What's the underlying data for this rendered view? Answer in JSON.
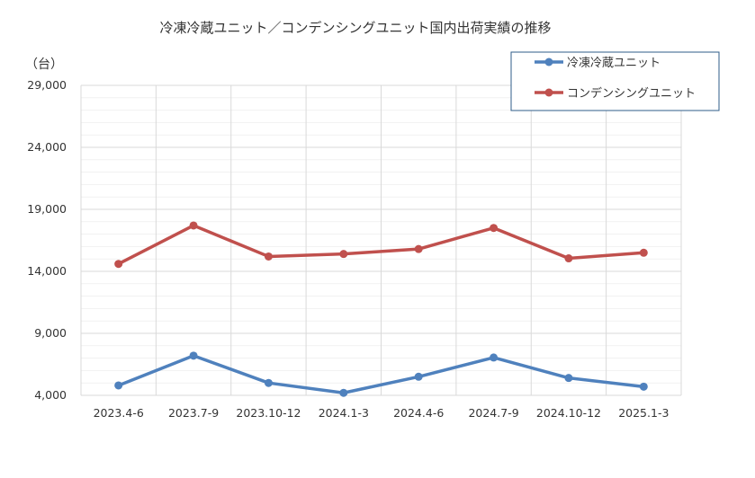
{
  "chart_data": {
    "type": "line",
    "title": "冷凍冷蔵ユニット／コンデンシングユニット国内出荷実績の推移",
    "unit_label": "（台）",
    "categories": [
      "2023.4-6",
      "2023.7-9",
      "2023.10-12",
      "2024.1-3",
      "2024.4-6",
      "2024.7-9",
      "2024.10-12",
      "2025.1-3"
    ],
    "y_ticks": [
      "4,000",
      "9,000",
      "14,000",
      "19,000",
      "24,000",
      "29,000"
    ],
    "ylim": [
      4000,
      29000
    ],
    "grid": true,
    "legend_position": "top-right",
    "series": [
      {
        "name": "冷凍冷蔵ユニット",
        "color": "#4F81BD",
        "values": [
          4800,
          7200,
          5000,
          4200,
          5500,
          7050,
          5400,
          4700
        ]
      },
      {
        "name": "コンデンシングユニット",
        "color": "#C0504D",
        "values": [
          14600,
          17700,
          15200,
          15400,
          15800,
          17500,
          15050,
          15500
        ]
      }
    ]
  }
}
